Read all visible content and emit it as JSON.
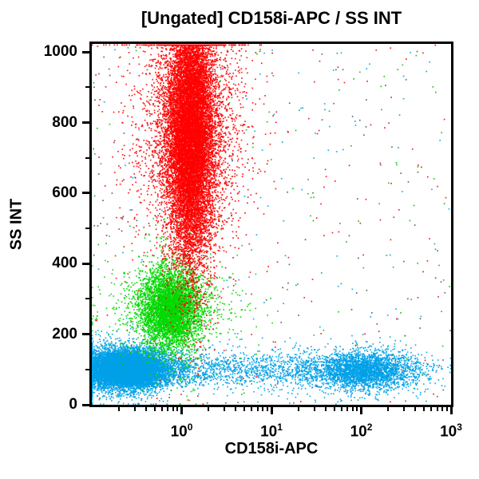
{
  "title": "[Ungated] CD158i-APC / SS INT",
  "chart_data": {
    "type": "scatter",
    "subtype": "flow-cytometry-dot-plot",
    "title": "[Ungated] CD158i-APC / SS INT",
    "xlabel": "CD158i-APC",
    "ylabel": "SS INT",
    "x_scale": "log10",
    "x_range_log10": [
      -1,
      3
    ],
    "y_scale": "linear",
    "y_range": [
      0,
      1023
    ],
    "x_major_tick_exponents": [
      0,
      1,
      2,
      3
    ],
    "x_tick_base": "10",
    "y_major_ticks": [
      0,
      200,
      400,
      600,
      800,
      1000
    ],
    "y_minor_ticks": [
      100,
      300,
      500,
      700,
      900
    ],
    "grid": false,
    "legend": "none",
    "axis_color": "#000000",
    "text_color": "#000000",
    "background_color": "#FFFFFF",
    "populations": [
      {
        "name": "granulocytes-red",
        "color": "#FF0000",
        "n": 16000,
        "x": {
          "dist": "gauss",
          "mean": 0.1,
          "sd": 0.13,
          "outlier_frac": 0.18,
          "outlier_mult": 2.4
        },
        "y": {
          "dist": "gauss",
          "mean": 765,
          "sd": 175,
          "outlier_frac": 0.1,
          "outlier_mult": 1.5
        }
      },
      {
        "name": "monocytes-green",
        "color": "#00D800",
        "n": 5200,
        "x": {
          "dist": "gauss",
          "mean": -0.12,
          "sd": 0.17,
          "outlier_frac": 0.15,
          "outlier_mult": 2.2
        },
        "y": {
          "dist": "gauss",
          "mean": 272,
          "sd": 55,
          "outlier_frac": 0.12,
          "outlier_mult": 1.8
        }
      },
      {
        "name": "lymphocytes-blue-negative",
        "color": "#00A0E8",
        "n": 11000,
        "x": {
          "dist": "gauss",
          "mean": -0.62,
          "sd": 0.24,
          "outlier_frac": 0.1,
          "outlier_mult": 1.8
        },
        "y": {
          "dist": "gauss",
          "mean": 101,
          "sd": 26,
          "outlier_frac": 0.1,
          "outlier_mult": 1.7
        }
      },
      {
        "name": "lymphocytes-blue-mid",
        "color": "#00A0E8",
        "n": 1000,
        "x": {
          "dist": "uniform",
          "min": -0.05,
          "max": 1.5
        },
        "y": {
          "dist": "gauss",
          "mean": 100,
          "sd": 27,
          "outlier_frac": 0.1,
          "outlier_mult": 1.5
        }
      },
      {
        "name": "lymphocytes-blue-positive",
        "color": "#00A0E8",
        "n": 3200,
        "x": {
          "dist": "gauss",
          "mean": 2.02,
          "sd": 0.3,
          "outlier_frac": 0.08,
          "outlier_mult": 1.5
        },
        "y": {
          "dist": "gauss",
          "mean": 97,
          "sd": 26,
          "outlier_frac": 0.1,
          "outlier_mult": 1.6
        }
      },
      {
        "name": "background-debris",
        "color": "mix",
        "mix_colors": [
          "#FF0000",
          "#00C000",
          "#00A0E8",
          "#555555"
        ],
        "n": 550,
        "x": {
          "dist": "uniform",
          "min": -1,
          "max": 3
        },
        "y": {
          "dist": "uniform",
          "min": 2,
          "max": 1020
        }
      }
    ]
  }
}
